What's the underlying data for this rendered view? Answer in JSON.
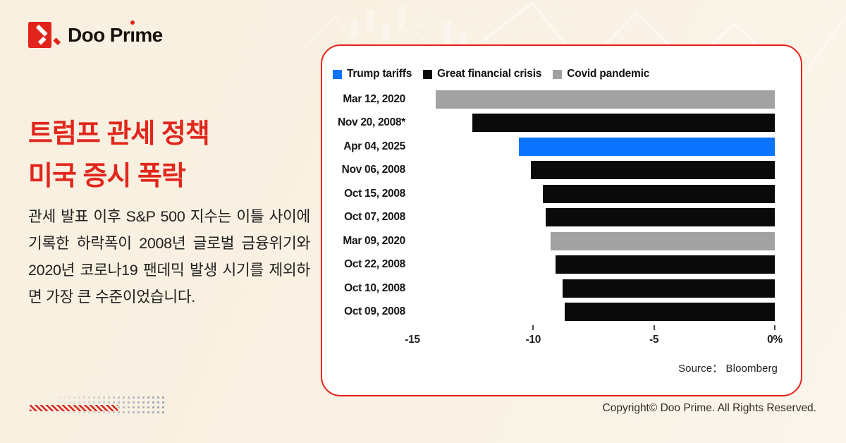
{
  "brand": {
    "logo_text_start": "Doo Pr",
    "logo_text_end": "me",
    "logo_mark_icon": "doo-prime-arrow-mark"
  },
  "headline": {
    "line1": "트럼프 관세 정책",
    "line2": "미국 증시 폭락"
  },
  "body_text": "관세 발표 이후 S&P 500 지수는 이틀 사이에 기록한 하락폭이 2008년 글로벌 금융위기와 2020년 코로나19 팬데믹 발생 시기를 제외하면 가장 큰 수준이었습니다.",
  "chart_data": {
    "type": "bar",
    "orientation": "horizontal",
    "title": "",
    "xlabel": "",
    "ylabel": "",
    "xlim": [
      -15,
      0
    ],
    "grid": false,
    "legend_position": "top",
    "legend": [
      {
        "key": "trump",
        "label": "Trump tariffs",
        "color": "#0a74ff"
      },
      {
        "key": "gfc",
        "label": "Great financial crisis",
        "color": "#0a0a0a"
      },
      {
        "key": "covid",
        "label": "Covid pandemic",
        "color": "#a2a2a2"
      }
    ],
    "rows": [
      {
        "label": "Mar 12, 2020",
        "value": -13.9,
        "series": "covid"
      },
      {
        "label": "Nov 20, 2008*",
        "value": -12.4,
        "series": "gfc"
      },
      {
        "label": "Apr 04, 2025",
        "value": -10.5,
        "series": "trump"
      },
      {
        "label": "Nov 06, 2008",
        "value": -10.0,
        "series": "gfc"
      },
      {
        "label": "Oct 15, 2008",
        "value": -9.5,
        "series": "gfc"
      },
      {
        "label": "Oct 07, 2008",
        "value": -9.4,
        "series": "gfc"
      },
      {
        "label": "Mar 09, 2020",
        "value": -9.2,
        "series": "covid"
      },
      {
        "label": "Oct 22, 2008",
        "value": -9.0,
        "series": "gfc"
      },
      {
        "label": "Oct 10, 2008",
        "value": -8.7,
        "series": "gfc"
      },
      {
        "label": "Oct 09, 2008",
        "value": -8.6,
        "series": "gfc"
      }
    ],
    "x_ticks": [
      "-15",
      "-10",
      "-5",
      "0%"
    ],
    "source": "Source：  Bloomberg"
  },
  "footer": {
    "copyright": "Copyright© Doo Prime. All Rights Reserved."
  },
  "colors": {
    "accent_red": "#e1261c",
    "bar_blue": "#0a74ff",
    "bar_black": "#0a0a0a",
    "bar_gray": "#a2a2a2",
    "background_cream": "#f9f1e3"
  }
}
